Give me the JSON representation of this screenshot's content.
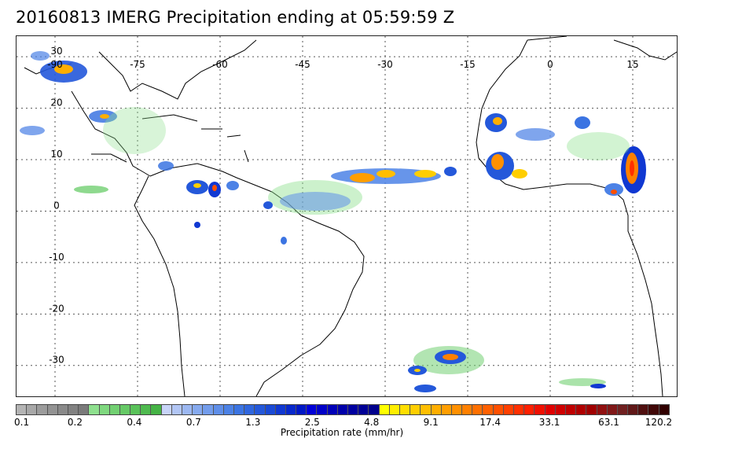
{
  "title": "20160813 IMERG Precipitation ending at 05:59:59 Z",
  "map": {
    "projection": "equirectangular",
    "lon_range": [
      -97,
      23
    ],
    "lat_range": [
      -36,
      34
    ],
    "lon_ticks": [
      {
        "value": -90,
        "label": "-90"
      },
      {
        "value": -75,
        "label": "-75"
      },
      {
        "value": -60,
        "label": "-60"
      },
      {
        "value": -45,
        "label": "-45"
      },
      {
        "value": -30,
        "label": "-30"
      },
      {
        "value": -15,
        "label": "-15"
      },
      {
        "value": 0,
        "label": "0"
      },
      {
        "value": 15,
        "label": "15"
      }
    ],
    "lat_ticks": [
      {
        "value": 30,
        "label": "30"
      },
      {
        "value": 20,
        "label": "20"
      },
      {
        "value": 10,
        "label": "10"
      },
      {
        "value": 0,
        "label": "0"
      },
      {
        "value": -10,
        "label": "-10"
      },
      {
        "value": -20,
        "label": "-20"
      },
      {
        "value": -30,
        "label": "-30"
      }
    ],
    "gridlines": true
  },
  "colorbar": {
    "label": "Precipitation rate (mm/hr)",
    "tick_labels": [
      "0.1",
      "0.2",
      "0.4",
      "0.7",
      "1.3",
      "2.5",
      "4.8",
      "9.1",
      "17.4",
      "33.1",
      "63.1",
      "120.2"
    ],
    "colors": [
      "#b4b4b4",
      "#a8a8a8",
      "#9c9c9c",
      "#939393",
      "#8a8a8a",
      "#828282",
      "#7a7a7a",
      "#8ee08e",
      "#7fd87f",
      "#72d072",
      "#66c966",
      "#5ac25a",
      "#4fba4f",
      "#45b345",
      "#c8d4f8",
      "#b2c6f5",
      "#9cb8f2",
      "#86aaef",
      "#739dec",
      "#5f8fe9",
      "#4c82e6",
      "#3b74e2",
      "#2f66de",
      "#2458da",
      "#1a4ad6",
      "#1038d2",
      "#0828cc",
      "#0018c6",
      "#0000d8",
      "#0000c8",
      "#0000b8",
      "#0000aa",
      "#0000a0",
      "#000096",
      "#00008c",
      "#ffff00",
      "#ffee00",
      "#ffde00",
      "#ffce00",
      "#ffbe00",
      "#ffae00",
      "#ff9e00",
      "#ff9000",
      "#ff8000",
      "#ff7000",
      "#ff6000",
      "#ff5000",
      "#ff4000",
      "#ff3000",
      "#ff2000",
      "#f01000",
      "#e00000",
      "#d00000",
      "#c00000",
      "#b00000",
      "#a00000",
      "#901010",
      "#801818",
      "#702020",
      "#601818",
      "#501010",
      "#400808",
      "#300000"
    ]
  }
}
